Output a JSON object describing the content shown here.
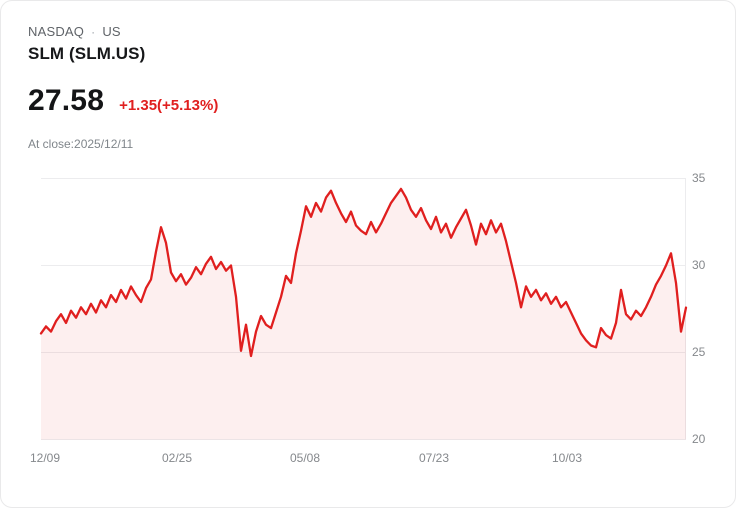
{
  "header": {
    "exchange": "NASDAQ",
    "separator": "·",
    "region": "US",
    "symbol_title": "SLM (SLM.US)",
    "price": "27.58",
    "change": "+1.35(+5.13%)",
    "as_of": "At close:2025/12/11"
  },
  "colors": {
    "line": "#e03131",
    "fill": "rgba(224,49,49,0.08)",
    "change_text": "#e01f1f",
    "grid": "#ececee",
    "axis_text": "#85888c"
  },
  "chart_data": {
    "type": "area",
    "title": "SLM (SLM.US) 1-year price chart",
    "xlabel": "",
    "ylabel": "",
    "ylim": [
      20,
      35
    ],
    "grid": true,
    "y_tick_labels": [
      "35",
      "30",
      "25",
      "20"
    ],
    "x_tick_labels": [
      "12/09",
      "02/25",
      "05/08",
      "07/23",
      "10/03"
    ],
    "values": [
      26.1,
      26.5,
      26.2,
      26.8,
      27.2,
      26.7,
      27.4,
      27.0,
      27.6,
      27.2,
      27.8,
      27.3,
      28.0,
      27.6,
      28.3,
      27.9,
      28.6,
      28.1,
      28.8,
      28.3,
      27.9,
      28.7,
      29.2,
      30.8,
      32.2,
      31.3,
      29.6,
      29.1,
      29.5,
      28.9,
      29.3,
      29.9,
      29.5,
      30.1,
      30.5,
      29.8,
      30.2,
      29.7,
      30.0,
      28.2,
      25.1,
      26.6,
      24.8,
      26.2,
      27.1,
      26.6,
      26.4,
      27.3,
      28.2,
      29.4,
      29.0,
      30.7,
      32.0,
      33.4,
      32.8,
      33.6,
      33.1,
      33.9,
      34.3,
      33.6,
      33.0,
      32.5,
      33.1,
      32.3,
      32.0,
      31.8,
      32.5,
      31.9,
      32.4,
      33.0,
      33.6,
      34.0,
      34.4,
      33.9,
      33.2,
      32.8,
      33.3,
      32.6,
      32.1,
      32.8,
      31.9,
      32.4,
      31.6,
      32.2,
      32.7,
      33.2,
      32.3,
      31.2,
      32.4,
      31.8,
      32.6,
      31.9,
      32.4,
      31.4,
      30.2,
      29.0,
      27.6,
      28.8,
      28.2,
      28.6,
      28.0,
      28.4,
      27.8,
      28.2,
      27.6,
      27.9,
      27.3,
      26.7,
      26.1,
      25.7,
      25.4,
      25.3,
      26.4,
      26.0,
      25.8,
      26.7,
      28.6,
      27.2,
      26.9,
      27.4,
      27.1,
      27.6,
      28.2,
      28.9,
      29.4,
      30.0,
      30.7,
      29.0,
      26.2,
      27.58
    ]
  }
}
